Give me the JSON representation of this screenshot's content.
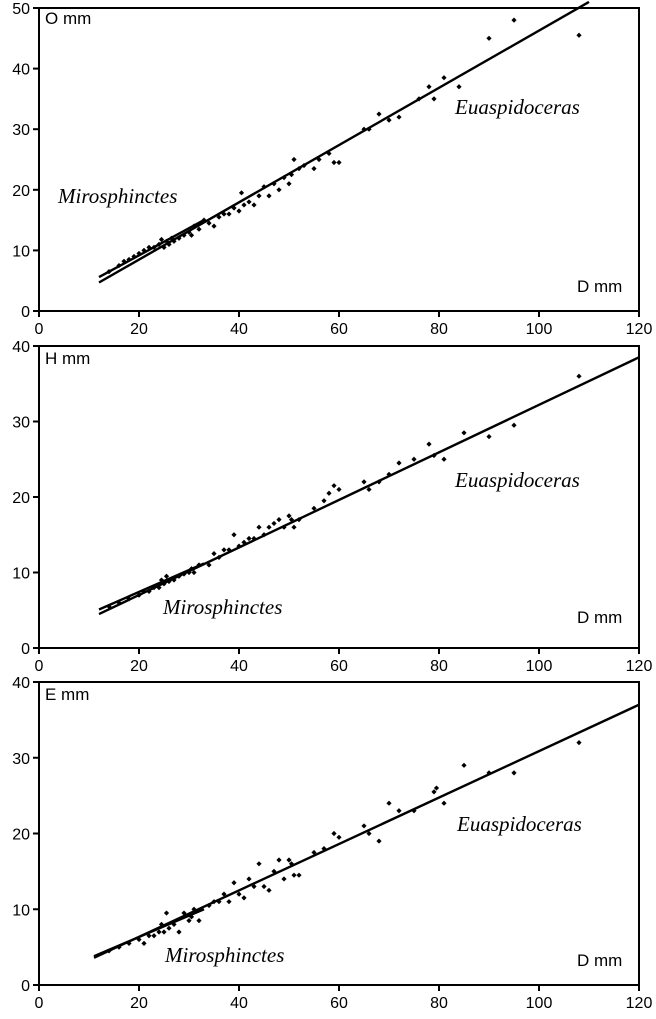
{
  "chart_data": [
    {
      "type": "scatter",
      "ylabel": "O mm",
      "xlabel": "D mm",
      "xlim": [
        0,
        120
      ],
      "ylim": [
        0,
        50
      ],
      "xticks": [
        0,
        20,
        40,
        60,
        80,
        100,
        120
      ],
      "yticks": [
        0,
        10,
        20,
        30,
        40,
        50
      ],
      "annotations": [
        "Euaspidoceras",
        "Mirosphinctes"
      ],
      "series": [
        {
          "points": [
            [
              14,
              6.5
            ],
            [
              16,
              7.5
            ],
            [
              17,
              8.2
            ],
            [
              18,
              8.5
            ],
            [
              19,
              9
            ],
            [
              20,
              9.5
            ],
            [
              21,
              10
            ],
            [
              22,
              10.5
            ],
            [
              23,
              10.5
            ],
            [
              24,
              11
            ],
            [
              24.5,
              11.8
            ],
            [
              25,
              10.5
            ],
            [
              25.5,
              11.5
            ],
            [
              26,
              11
            ],
            [
              26.5,
              12
            ],
            [
              27,
              11.5
            ],
            [
              28,
              12
            ],
            [
              29,
              12.5
            ],
            [
              30,
              13
            ],
            [
              30.5,
              12.5
            ],
            [
              31,
              14
            ],
            [
              32,
              13.5
            ],
            [
              33,
              15
            ],
            [
              34,
              14.5
            ],
            [
              35,
              14
            ],
            [
              36,
              15.5
            ],
            [
              37,
              16
            ],
            [
              38,
              16
            ],
            [
              39,
              17
            ],
            [
              40,
              16.5
            ],
            [
              40.5,
              19.5
            ],
            [
              41,
              17.5
            ],
            [
              42,
              18
            ],
            [
              43,
              17.5
            ],
            [
              44,
              19
            ],
            [
              45,
              20.5
            ],
            [
              46,
              19
            ],
            [
              47,
              21
            ],
            [
              48,
              20
            ],
            [
              49,
              22
            ],
            [
              50,
              21
            ],
            [
              50.5,
              22.5
            ],
            [
              51,
              25
            ],
            [
              52,
              23.5
            ],
            [
              53,
              24
            ],
            [
              55,
              23.5
            ],
            [
              56,
              25
            ],
            [
              58,
              26
            ],
            [
              59,
              24.5
            ],
            [
              60,
              24.5
            ],
            [
              65,
              30
            ],
            [
              66,
              30
            ],
            [
              68,
              32.5
            ],
            [
              70,
              31.5
            ],
            [
              72,
              32
            ],
            [
              76,
              35
            ],
            [
              78,
              37
            ],
            [
              79,
              35
            ],
            [
              81,
              38.5
            ],
            [
              84,
              37
            ],
            [
              90,
              45
            ],
            [
              95,
              48
            ],
            [
              108,
              45.5
            ]
          ]
        }
      ],
      "fit_lines": [
        {
          "name": "Euaspidoceras",
          "x": [
            12,
            110
          ],
          "y": [
            4.7,
            51
          ]
        },
        {
          "name": "Mirosphinctes",
          "x": [
            12,
            33
          ],
          "y": [
            5.6,
            15
          ]
        }
      ]
    },
    {
      "type": "scatter",
      "ylabel": "H mm",
      "xlabel": "D mm",
      "xlim": [
        0,
        120
      ],
      "ylim": [
        0,
        40
      ],
      "xticks": [
        0,
        20,
        40,
        60,
        80,
        100,
        120
      ],
      "yticks": [
        0,
        10,
        20,
        30,
        40
      ],
      "annotations": [
        "Euaspidoceras",
        "Mirosphinctes"
      ],
      "series": [
        {
          "points": [
            [
              14,
              5.5
            ],
            [
              16,
              6
            ],
            [
              18,
              6.5
            ],
            [
              20,
              7
            ],
            [
              21,
              7.5
            ],
            [
              22,
              7.5
            ],
            [
              23,
              8
            ],
            [
              24,
              8
            ],
            [
              24.5,
              9
            ],
            [
              25,
              8.5
            ],
            [
              25.5,
              9.5
            ],
            [
              26,
              8.8
            ],
            [
              27,
              9
            ],
            [
              28,
              9.5
            ],
            [
              29,
              9.8
            ],
            [
              30,
              10
            ],
            [
              30.5,
              10.5
            ],
            [
              31,
              10
            ],
            [
              32,
              11
            ],
            [
              34,
              11
            ],
            [
              35,
              12.5
            ],
            [
              36,
              12
            ],
            [
              37,
              13
            ],
            [
              38,
              13
            ],
            [
              39,
              15
            ],
            [
              40,
              13.5
            ],
            [
              41,
              14
            ],
            [
              42,
              14.5
            ],
            [
              43,
              14.5
            ],
            [
              44,
              16
            ],
            [
              45,
              15
            ],
            [
              46,
              16
            ],
            [
              47,
              16.5
            ],
            [
              48,
              17
            ],
            [
              49,
              16
            ],
            [
              50,
              17.5
            ],
            [
              50.5,
              17
            ],
            [
              51,
              16
            ],
            [
              52,
              17
            ],
            [
              55,
              18.5
            ],
            [
              57,
              19.5
            ],
            [
              58,
              20.5
            ],
            [
              59,
              21.5
            ],
            [
              60,
              21
            ],
            [
              65,
              22
            ],
            [
              66,
              21
            ],
            [
              68,
              22
            ],
            [
              70,
              23
            ],
            [
              72,
              24.5
            ],
            [
              75,
              25
            ],
            [
              78,
              27
            ],
            [
              79,
              25.5
            ],
            [
              81,
              25
            ],
            [
              85,
              28.5
            ],
            [
              90,
              28
            ],
            [
              95,
              29.5
            ],
            [
              108,
              36
            ]
          ]
        }
      ],
      "fit_lines": [
        {
          "name": "Euaspidoceras",
          "x": [
            12,
            120
          ],
          "y": [
            4.5,
            38.5
          ]
        },
        {
          "name": "Mirosphinctes",
          "x": [
            12,
            33
          ],
          "y": [
            5.1,
            11.2
          ]
        }
      ]
    },
    {
      "type": "scatter",
      "ylabel": "E mm",
      "xlabel": "D mm",
      "xlim": [
        0,
        120
      ],
      "ylim": [
        0,
        40
      ],
      "xticks": [
        0,
        20,
        40,
        60,
        80,
        100,
        120
      ],
      "yticks": [
        0,
        10,
        20,
        30,
        40
      ],
      "annotations": [
        "Euaspidoceras",
        "Mirosphinctes"
      ],
      "series": [
        {
          "points": [
            [
              14,
              4.5
            ],
            [
              16,
              5
            ],
            [
              18,
              5.5
            ],
            [
              20,
              6
            ],
            [
              21,
              5.5
            ],
            [
              22,
              6.5
            ],
            [
              23,
              6.5
            ],
            [
              24,
              7
            ],
            [
              24.5,
              8
            ],
            [
              25,
              7
            ],
            [
              25.5,
              9.5
            ],
            [
              26,
              7.5
            ],
            [
              27,
              8
            ],
            [
              28,
              7
            ],
            [
              29,
              9.5
            ],
            [
              30,
              8.5
            ],
            [
              30.5,
              9
            ],
            [
              31,
              10
            ],
            [
              32,
              8.5
            ],
            [
              34,
              10.5
            ],
            [
              35,
              11
            ],
            [
              36,
              11
            ],
            [
              37,
              12
            ],
            [
              38,
              11
            ],
            [
              39,
              13.5
            ],
            [
              40,
              12
            ],
            [
              41,
              11.5
            ],
            [
              42,
              14
            ],
            [
              43,
              13
            ],
            [
              44,
              16
            ],
            [
              45,
              13
            ],
            [
              46,
              12.5
            ],
            [
              47,
              15
            ],
            [
              48,
              16.5
            ],
            [
              49,
              14
            ],
            [
              50,
              16.5
            ],
            [
              50.5,
              16
            ],
            [
              51,
              14.5
            ],
            [
              52,
              14.5
            ],
            [
              55,
              17.5
            ],
            [
              57,
              18
            ],
            [
              59,
              20
            ],
            [
              60,
              19.5
            ],
            [
              65,
              21
            ],
            [
              66,
              20
            ],
            [
              68,
              19
            ],
            [
              70,
              24
            ],
            [
              72,
              23
            ],
            [
              75,
              23
            ],
            [
              79,
              25.5
            ],
            [
              79.5,
              26
            ],
            [
              81,
              24
            ],
            [
              85,
              29
            ],
            [
              90,
              28
            ],
            [
              95,
              28
            ],
            [
              108,
              32
            ]
          ]
        }
      ],
      "fit_lines": [
        {
          "name": "Euaspidoceras",
          "x": [
            11,
            120
          ],
          "y": [
            3.6,
            37
          ]
        },
        {
          "name": "Mirosphinctes",
          "x": [
            11,
            33
          ],
          "y": [
            3.8,
            10
          ]
        }
      ]
    }
  ]
}
